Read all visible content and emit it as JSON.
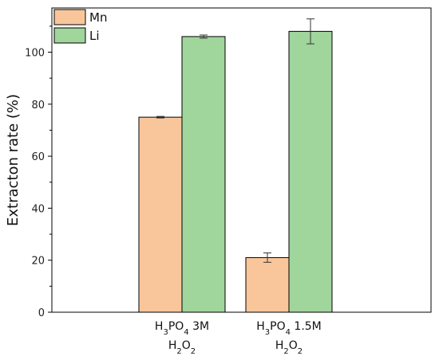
{
  "chart_data": {
    "type": "bar",
    "title": "",
    "xlabel": "",
    "ylabel": "Extracton rate (%)",
    "ylim": [
      0,
      117
    ],
    "yticks": [
      0,
      20,
      40,
      60,
      80,
      100
    ],
    "grid": false,
    "legend_position": "top-left",
    "categories": [
      {
        "line1": {
          "h": "H",
          "s1": "3",
          "p": "PO",
          "s2": "4",
          "rest": " 3M"
        },
        "line2": {
          "h": "H",
          "s1": "2",
          "o": "O",
          "s2": "2"
        }
      },
      {
        "line1": {
          "h": "H",
          "s1": "3",
          "p": "PO",
          "s2": "4",
          "rest": " 1.5M"
        },
        "line2": {
          "h": "H",
          "s1": "2",
          "o": "O",
          "s2": "2"
        }
      }
    ],
    "series": [
      {
        "name": "Mn",
        "color": "#f9c69b",
        "values": [
          75.0,
          21.0
        ],
        "errors": [
          0.3,
          1.8
        ]
      },
      {
        "name": "Li",
        "color": "#a0d59c",
        "values": [
          106.0,
          108.0
        ],
        "errors": [
          0.6,
          4.8
        ]
      }
    ]
  }
}
